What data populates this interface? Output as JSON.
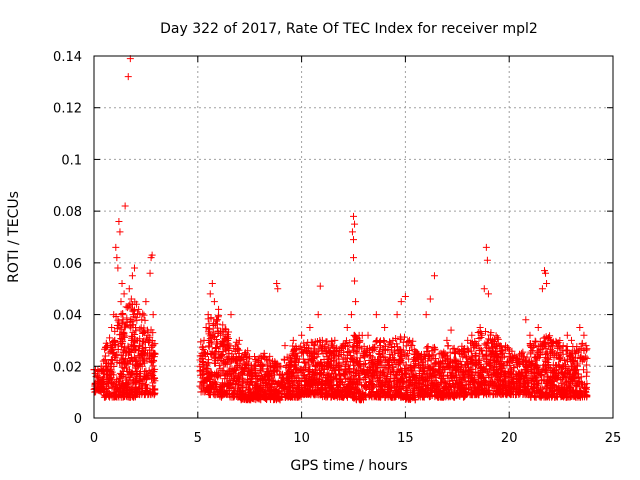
{
  "chart_data": {
    "type": "scatter",
    "title": "Day 322 of 2017, Rate Of TEC Index for receiver mpl2",
    "xlabel": "GPS time / hours",
    "ylabel": "ROTI / TECUs",
    "xlim": [
      0,
      25
    ],
    "ylim": [
      0,
      0.14
    ],
    "xticks": [
      0,
      5,
      10,
      15,
      20,
      25
    ],
    "xtick_labels": [
      "0",
      "5",
      "10",
      "15",
      "20",
      "25"
    ],
    "yticks": [
      0,
      0.02,
      0.04,
      0.06,
      0.08,
      0.1,
      0.12,
      0.14
    ],
    "ytick_labels": [
      "0",
      "0.02",
      "0.04",
      "0.06",
      "0.08",
      "0.1",
      "0.12",
      "0.14"
    ],
    "grid": true,
    "marker": "+",
    "color": "#ff0000",
    "series": [
      {
        "name": "ROTI",
        "points": [
          [
            0.05,
            0.013
          ],
          [
            0.1,
            0.016
          ],
          [
            0.15,
            0.011
          ],
          [
            0.2,
            0.014
          ],
          [
            0.25,
            0.018
          ],
          [
            0.3,
            0.012
          ],
          [
            0.35,
            0.02
          ],
          [
            0.4,
            0.015
          ],
          [
            0.45,
            0.022
          ],
          [
            0.5,
            0.017
          ],
          [
            0.55,
            0.024
          ],
          [
            0.6,
            0.019
          ],
          [
            0.65,
            0.028
          ],
          [
            0.7,
            0.021
          ],
          [
            0.75,
            0.031
          ],
          [
            0.8,
            0.018
          ],
          [
            0.85,
            0.035
          ],
          [
            0.9,
            0.025
          ],
          [
            0.95,
            0.04
          ],
          [
            1.0,
            0.03
          ],
          [
            1.05,
            0.066
          ],
          [
            1.1,
            0.062
          ],
          [
            1.15,
            0.058
          ],
          [
            1.2,
            0.076
          ],
          [
            1.25,
            0.072
          ],
          [
            1.3,
            0.045
          ],
          [
            1.35,
            0.052
          ],
          [
            1.4,
            0.038
          ],
          [
            1.45,
            0.048
          ],
          [
            1.5,
            0.082
          ],
          [
            1.55,
            0.043
          ],
          [
            1.6,
            0.037
          ],
          [
            1.65,
            0.132
          ],
          [
            1.7,
            0.05
          ],
          [
            1.75,
            0.139
          ],
          [
            1.8,
            0.046
          ],
          [
            1.85,
            0.055
          ],
          [
            1.9,
            0.04
          ],
          [
            1.95,
            0.058
          ],
          [
            2.0,
            0.035
          ],
          [
            2.05,
            0.044
          ],
          [
            2.1,
            0.03
          ],
          [
            2.15,
            0.042
          ],
          [
            2.2,
            0.028
          ],
          [
            2.3,
            0.038
          ],
          [
            2.4,
            0.025
          ],
          [
            2.5,
            0.045
          ],
          [
            2.6,
            0.032
          ],
          [
            2.7,
            0.056
          ],
          [
            2.75,
            0.062
          ],
          [
            2.8,
            0.063
          ],
          [
            2.85,
            0.04
          ],
          [
            2.9,
            0.025
          ],
          [
            1.1,
            0.015
          ],
          [
            1.3,
            0.012
          ],
          [
            1.6,
            0.018
          ],
          [
            1.9,
            0.014
          ],
          [
            2.2,
            0.016
          ],
          [
            2.5,
            0.013
          ],
          [
            2.8,
            0.017
          ],
          [
            5.1,
            0.02
          ],
          [
            5.2,
            0.025
          ],
          [
            5.3,
            0.03
          ],
          [
            5.4,
            0.035
          ],
          [
            5.5,
            0.04
          ],
          [
            5.6,
            0.048
          ],
          [
            5.7,
            0.052
          ],
          [
            5.8,
            0.045
          ],
          [
            5.9,
            0.038
          ],
          [
            6.0,
            0.042
          ],
          [
            6.1,
            0.032
          ],
          [
            6.2,
            0.036
          ],
          [
            6.3,
            0.028
          ],
          [
            6.4,
            0.03
          ],
          [
            6.5,
            0.025
          ],
          [
            6.6,
            0.04
          ],
          [
            6.8,
            0.022
          ],
          [
            7.0,
            0.03
          ],
          [
            7.2,
            0.018
          ],
          [
            7.4,
            0.026
          ],
          [
            7.6,
            0.016
          ],
          [
            7.8,
            0.022
          ],
          [
            8.0,
            0.02
          ],
          [
            8.2,
            0.025
          ],
          [
            8.4,
            0.018
          ],
          [
            8.6,
            0.022
          ],
          [
            8.8,
            0.052
          ],
          [
            8.85,
            0.05
          ],
          [
            9.0,
            0.02
          ],
          [
            9.2,
            0.028
          ],
          [
            9.4,
            0.018
          ],
          [
            9.6,
            0.03
          ],
          [
            9.8,
            0.024
          ],
          [
            10.0,
            0.032
          ],
          [
            10.2,
            0.026
          ],
          [
            10.4,
            0.035
          ],
          [
            10.6,
            0.028
          ],
          [
            10.8,
            0.04
          ],
          [
            10.9,
            0.051
          ],
          [
            11.0,
            0.03
          ],
          [
            11.2,
            0.025
          ],
          [
            11.4,
            0.022
          ],
          [
            11.6,
            0.03
          ],
          [
            11.8,
            0.02
          ],
          [
            12.0,
            0.028
          ],
          [
            12.2,
            0.035
          ],
          [
            12.4,
            0.04
          ],
          [
            12.5,
            0.078
          ],
          [
            12.55,
            0.075
          ],
          [
            12.5,
            0.069
          ],
          [
            12.45,
            0.072
          ],
          [
            12.5,
            0.062
          ],
          [
            12.55,
            0.053
          ],
          [
            12.6,
            0.045
          ],
          [
            12.8,
            0.03
          ],
          [
            13.0,
            0.025
          ],
          [
            13.2,
            0.032
          ],
          [
            13.4,
            0.022
          ],
          [
            13.6,
            0.04
          ],
          [
            13.8,
            0.028
          ],
          [
            14.0,
            0.035
          ],
          [
            14.2,
            0.022
          ],
          [
            14.4,
            0.03
          ],
          [
            14.6,
            0.04
          ],
          [
            14.8,
            0.045
          ],
          [
            15.0,
            0.047
          ],
          [
            15.2,
            0.03
          ],
          [
            15.4,
            0.02
          ],
          [
            15.6,
            0.025
          ],
          [
            15.8,
            0.018
          ],
          [
            16.0,
            0.04
          ],
          [
            16.2,
            0.046
          ],
          [
            16.4,
            0.055
          ],
          [
            16.6,
            0.02
          ],
          [
            16.8,
            0.022
          ],
          [
            17.0,
            0.03
          ],
          [
            17.2,
            0.034
          ],
          [
            17.4,
            0.02
          ],
          [
            17.6,
            0.025
          ],
          [
            17.8,
            0.018
          ],
          [
            18.0,
            0.03
          ],
          [
            18.2,
            0.032
          ],
          [
            18.4,
            0.025
          ],
          [
            18.6,
            0.035
          ],
          [
            18.8,
            0.05
          ],
          [
            18.9,
            0.066
          ],
          [
            18.95,
            0.061
          ],
          [
            19.0,
            0.048
          ],
          [
            19.2,
            0.03
          ],
          [
            19.4,
            0.025
          ],
          [
            19.6,
            0.02
          ],
          [
            19.8,
            0.018
          ],
          [
            20.0,
            0.022
          ],
          [
            20.2,
            0.015
          ],
          [
            20.4,
            0.02
          ],
          [
            20.6,
            0.025
          ],
          [
            20.8,
            0.038
          ],
          [
            21.0,
            0.032
          ],
          [
            21.2,
            0.028
          ],
          [
            21.4,
            0.035
          ],
          [
            21.6,
            0.05
          ],
          [
            21.7,
            0.057
          ],
          [
            21.75,
            0.056
          ],
          [
            21.8,
            0.052
          ],
          [
            22.0,
            0.03
          ],
          [
            22.2,
            0.025
          ],
          [
            22.4,
            0.02
          ],
          [
            22.6,
            0.028
          ],
          [
            22.8,
            0.032
          ],
          [
            23.0,
            0.03
          ],
          [
            23.2,
            0.025
          ],
          [
            23.4,
            0.035
          ],
          [
            23.6,
            0.032
          ],
          [
            23.7,
            0.028
          ]
        ]
      }
    ],
    "density_envelope": {
      "description": "dense measurement cloud per hour bin as [hour, lower ROTI, upper ROTI, count]",
      "bins": [
        [
          0.0,
          0.01,
          0.02,
          60
        ],
        [
          0.5,
          0.008,
          0.03,
          80
        ],
        [
          1.0,
          0.008,
          0.042,
          110
        ],
        [
          1.5,
          0.008,
          0.045,
          120
        ],
        [
          2.0,
          0.009,
          0.042,
          110
        ],
        [
          2.5,
          0.009,
          0.035,
          90
        ],
        [
          5.0,
          0.01,
          0.03,
          70
        ],
        [
          5.5,
          0.009,
          0.04,
          110
        ],
        [
          6.0,
          0.008,
          0.035,
          100
        ],
        [
          6.5,
          0.008,
          0.03,
          90
        ],
        [
          7.0,
          0.007,
          0.026,
          90
        ],
        [
          7.5,
          0.007,
          0.024,
          90
        ],
        [
          8.0,
          0.007,
          0.024,
          90
        ],
        [
          8.5,
          0.007,
          0.022,
          85
        ],
        [
          9.0,
          0.008,
          0.024,
          85
        ],
        [
          9.5,
          0.008,
          0.028,
          95
        ],
        [
          10.0,
          0.009,
          0.03,
          100
        ],
        [
          10.5,
          0.009,
          0.03,
          100
        ],
        [
          11.0,
          0.008,
          0.03,
          100
        ],
        [
          11.5,
          0.008,
          0.028,
          95
        ],
        [
          12.0,
          0.008,
          0.03,
          100
        ],
        [
          12.5,
          0.007,
          0.032,
          105
        ],
        [
          13.0,
          0.008,
          0.028,
          95
        ],
        [
          13.5,
          0.008,
          0.03,
          95
        ],
        [
          14.0,
          0.008,
          0.03,
          95
        ],
        [
          14.5,
          0.008,
          0.032,
          100
        ],
        [
          15.0,
          0.007,
          0.03,
          95
        ],
        [
          15.5,
          0.008,
          0.026,
          90
        ],
        [
          16.0,
          0.008,
          0.028,
          90
        ],
        [
          16.5,
          0.008,
          0.026,
          90
        ],
        [
          17.0,
          0.008,
          0.028,
          95
        ],
        [
          17.5,
          0.008,
          0.028,
          90
        ],
        [
          18.0,
          0.009,
          0.03,
          95
        ],
        [
          18.5,
          0.009,
          0.034,
          100
        ],
        [
          19.0,
          0.009,
          0.034,
          105
        ],
        [
          19.5,
          0.009,
          0.028,
          95
        ],
        [
          20.0,
          0.009,
          0.026,
          90
        ],
        [
          20.5,
          0.009,
          0.026,
          90
        ],
        [
          21.0,
          0.008,
          0.03,
          95
        ],
        [
          21.5,
          0.008,
          0.032,
          100
        ],
        [
          22.0,
          0.008,
          0.03,
          95
        ],
        [
          22.5,
          0.008,
          0.028,
          95
        ],
        [
          23.0,
          0.008,
          0.028,
          95
        ],
        [
          23.5,
          0.008,
          0.03,
          70
        ]
      ]
    }
  }
}
